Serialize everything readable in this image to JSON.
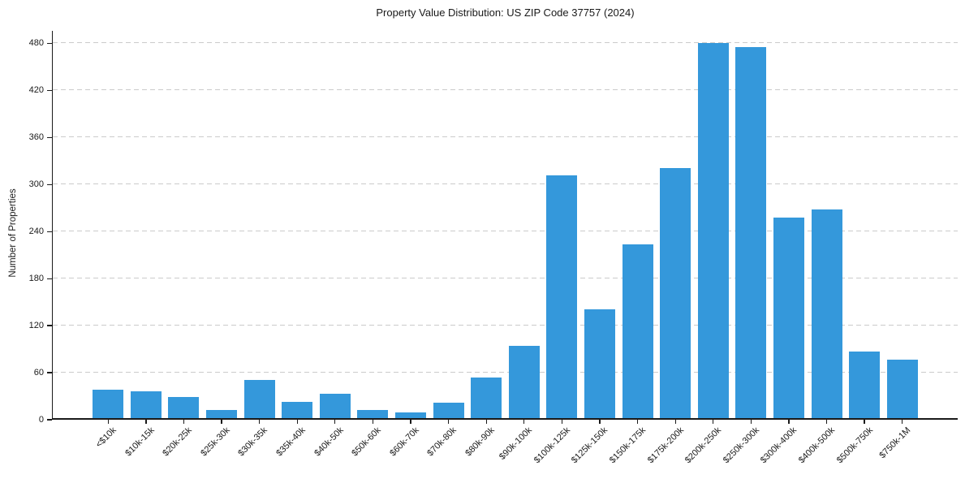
{
  "chart_data": {
    "type": "bar",
    "title": "Property Value Distribution: US ZIP Code 37757 (2024)",
    "xlabel": "",
    "ylabel": "Number of Properties",
    "categories": [
      "<$10k",
      "$10k-15k",
      "$20k-25k",
      "$25k-30k",
      "$30k-35k",
      "$35k-40k",
      "$40k-50k",
      "$50k-60k",
      "$60k-70k",
      "$70k-80k",
      "$80k-90k",
      "$90k-100k",
      "$100k-125k",
      "$125k-150k",
      "$150k-175k",
      "$175k-200k",
      "$200k-250k",
      "$250k-300k",
      "$300k-400k",
      "$400k-500k",
      "$500k-750k",
      "$750k-1M"
    ],
    "values": [
      37,
      35,
      27,
      11,
      49,
      21,
      31,
      11,
      8,
      20,
      52,
      93,
      310,
      139,
      222,
      319,
      479,
      474,
      256,
      266,
      85,
      75
    ],
    "ylim": [
      0,
      496
    ],
    "yticks": [
      0,
      60,
      120,
      180,
      240,
      300,
      360,
      420,
      480
    ],
    "x_tick_rotation": 45,
    "grid": "horizontal-dashed",
    "legend": null,
    "colors": {
      "bar": "#3498db",
      "gridline": "#cbcbcb",
      "axis": "#1a1a1a",
      "text": "#1a1a1a",
      "background": "#ffffff"
    }
  }
}
